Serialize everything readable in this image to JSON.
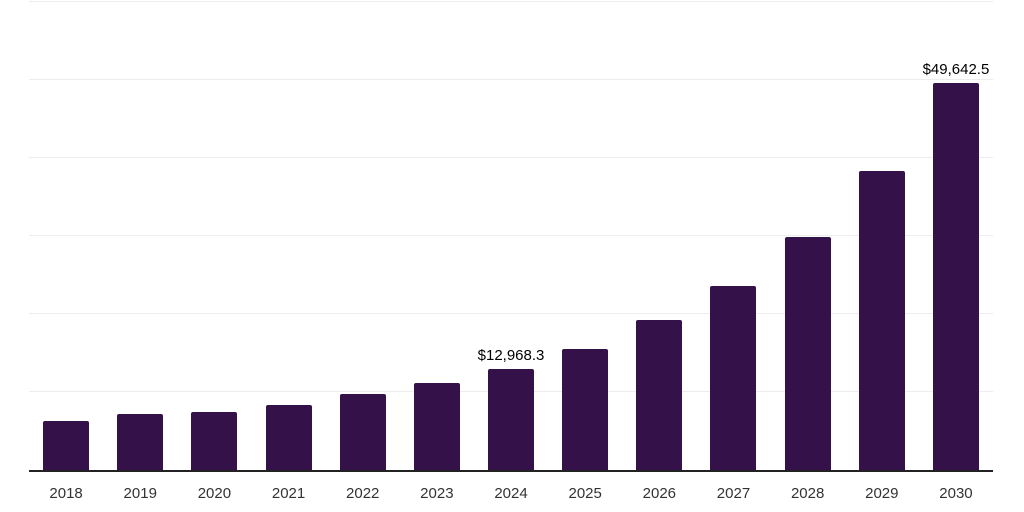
{
  "chart_data": {
    "type": "bar",
    "title": "",
    "xlabel": "",
    "ylabel": "",
    "categories": [
      "2018",
      "2019",
      "2020",
      "2021",
      "2022",
      "2023",
      "2024",
      "2025",
      "2026",
      "2027",
      "2028",
      "2029",
      "2030"
    ],
    "values": [
      6300,
      7200,
      7450,
      8350,
      9800,
      11200,
      12968.3,
      15550,
      19300,
      23650,
      29850,
      38300,
      49642.5
    ],
    "data_labels": [
      "",
      "",
      "",
      "",
      "",
      "",
      "$12,968.3",
      "",
      "",
      "",
      "",
      "",
      "$49,642.5"
    ],
    "ylim": [
      0,
      60000
    ],
    "gridline_step": 10000,
    "grid": "horizontal",
    "legend": "none",
    "y_axis_labels_visible": false,
    "bar_color": "#341149",
    "axis_line_color": "#222222",
    "gridline_color": "#ededed",
    "tick_label_color": "#333333",
    "data_label_color": "#000000"
  }
}
